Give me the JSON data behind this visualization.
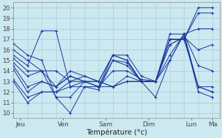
{
  "xlabel": "Température (°c)",
  "xlim": [
    0,
    116
  ],
  "ylim": [
    9.5,
    20.5
  ],
  "yticks": [
    10,
    11,
    12,
    13,
    14,
    15,
    16,
    17,
    18,
    19,
    20
  ],
  "xtick_positions": [
    4,
    28,
    52,
    76,
    100,
    112
  ],
  "xtick_labels": [
    "Jeu",
    "Ven",
    "Sam",
    "Dim",
    "Lun",
    "Ma"
  ],
  "background_color": "#cce8f0",
  "grid_color": "#aaccd8",
  "line_color": "#1a3a9c",
  "series": [
    [
      0,
      16.6,
      8,
      15.5,
      16,
      15.0,
      24,
      11.5,
      32,
      10.0,
      40,
      12.5,
      48,
      12.2,
      56,
      15.0,
      64,
      14.8,
      72,
      13.0,
      80,
      11.5,
      88,
      15.0,
      96,
      17.5,
      104,
      18.0,
      112,
      18.0
    ],
    [
      0,
      16.0,
      8,
      15.0,
      16,
      14.0,
      24,
      11.5,
      32,
      11.5,
      40,
      13.0,
      48,
      12.5,
      56,
      15.5,
      64,
      15.5,
      72,
      13.5,
      80,
      13.0,
      88,
      17.0,
      96,
      17.0,
      104,
      20.0,
      112,
      20.0
    ],
    [
      0,
      15.5,
      8,
      14.5,
      16,
      17.8,
      24,
      17.8,
      32,
      12.5,
      40,
      13.0,
      48,
      12.5,
      56,
      15.0,
      64,
      14.5,
      72,
      13.0,
      80,
      13.0,
      88,
      17.0,
      96,
      17.0,
      104,
      19.5,
      112,
      19.5
    ],
    [
      0,
      15.2,
      8,
      14.0,
      16,
      14.0,
      24,
      14.0,
      32,
      13.0,
      40,
      13.5,
      48,
      13.0,
      56,
      15.5,
      64,
      15.0,
      72,
      13.0,
      80,
      13.0,
      88,
      17.5,
      96,
      17.5,
      104,
      14.5,
      112,
      14.0
    ],
    [
      0,
      14.8,
      8,
      13.5,
      16,
      14.0,
      24,
      12.5,
      32,
      13.5,
      40,
      13.0,
      48,
      12.5,
      56,
      14.0,
      64,
      14.0,
      72,
      13.2,
      80,
      13.0,
      88,
      16.5,
      96,
      17.2,
      104,
      16.0,
      112,
      16.5
    ],
    [
      0,
      14.5,
      8,
      12.5,
      16,
      13.0,
      24,
      12.5,
      32,
      14.0,
      40,
      13.5,
      48,
      13.0,
      56,
      15.5,
      64,
      15.0,
      72,
      13.0,
      80,
      13.0,
      88,
      17.0,
      96,
      17.0,
      104,
      12.5,
      112,
      12.0
    ],
    [
      0,
      14.2,
      8,
      12.0,
      16,
      13.0,
      24,
      12.5,
      32,
      13.5,
      40,
      13.0,
      48,
      13.0,
      56,
      12.5,
      64,
      13.5,
      72,
      13.0,
      80,
      13.0,
      88,
      16.5,
      96,
      17.2,
      104,
      12.5,
      112,
      12.5
    ],
    [
      0,
      13.2,
      8,
      11.5,
      16,
      12.0,
      24,
      12.0,
      32,
      13.0,
      40,
      13.0,
      48,
      13.0,
      56,
      12.5,
      64,
      13.0,
      72,
      13.0,
      80,
      13.0,
      88,
      15.5,
      96,
      17.5,
      104,
      12.5,
      112,
      12.0
    ],
    [
      0,
      13.0,
      8,
      11.0,
      16,
      12.0,
      24,
      12.0,
      32,
      12.5,
      40,
      12.5,
      48,
      12.5,
      56,
      12.5,
      64,
      13.0,
      72,
      13.0,
      80,
      13.0,
      88,
      15.0,
      96,
      17.5,
      104,
      12.0,
      112,
      11.5
    ]
  ]
}
